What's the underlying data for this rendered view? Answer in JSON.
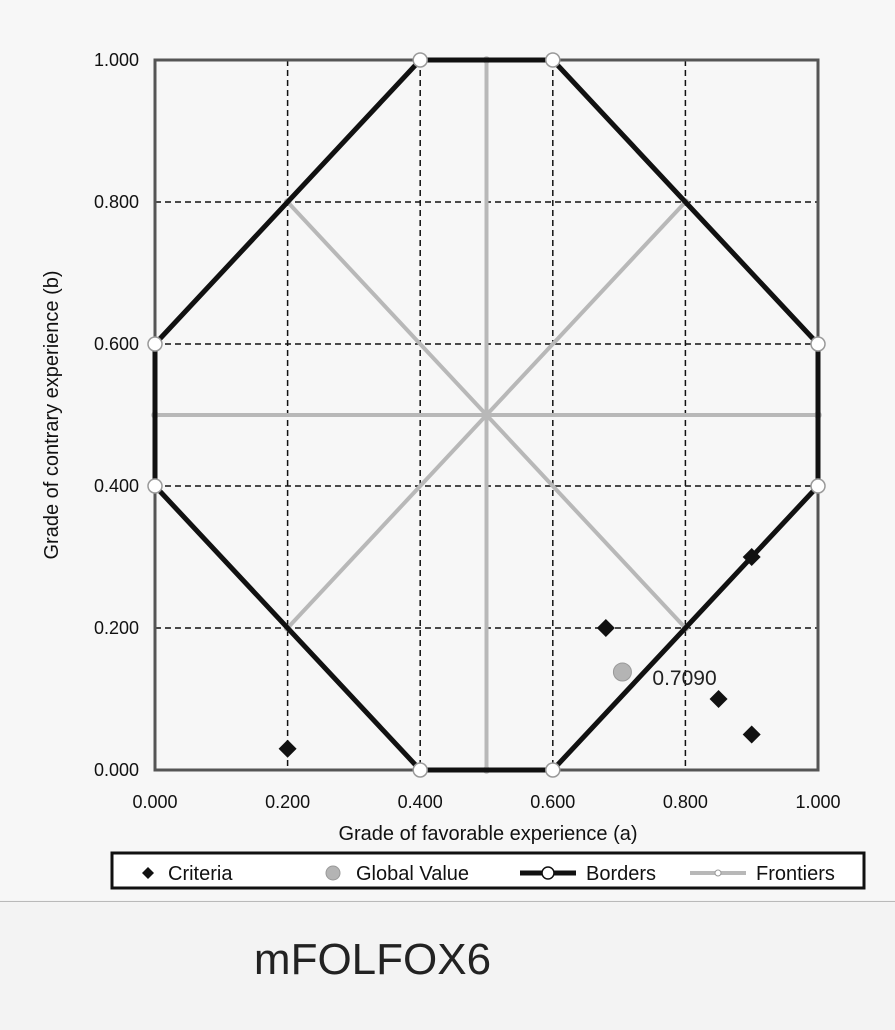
{
  "figure_caption": "mFOLFOX6",
  "chart_data": {
    "type": "scatter",
    "xlabel": "Grade of favorable experience (a)",
    "ylabel": "Grade of contrary experience (b)",
    "xlim": [
      0,
      1
    ],
    "ylim": [
      0,
      1
    ],
    "x_ticks": [
      "0.000",
      "0.200",
      "0.400",
      "0.600",
      "0.800",
      "1.000"
    ],
    "y_ticks": [
      "0.000",
      "0.200",
      "0.400",
      "0.600",
      "0.800",
      "1.000"
    ],
    "x_grid": [
      0.2,
      0.4,
      0.6,
      0.8
    ],
    "y_grid": [
      0.2,
      0.4,
      0.6,
      0.8
    ],
    "grid": true,
    "legend_position": "bottom",
    "legend": [
      "Criteria",
      "Global Value",
      "Borders",
      "Frontiers"
    ],
    "series": [
      {
        "name": "Criteria",
        "marker": "diamond",
        "color": "#111111",
        "points": [
          [
            0.2,
            0.03
          ],
          [
            0.68,
            0.2
          ],
          [
            0.85,
            0.1
          ],
          [
            0.9,
            0.05
          ],
          [
            0.9,
            0.3
          ]
        ]
      },
      {
        "name": "Global Value",
        "marker": "circle",
        "color": "#b4b4b4",
        "points": [
          [
            0.705,
            0.138
          ]
        ],
        "annotation": "0.7090"
      },
      {
        "name": "Borders",
        "marker": "open-circle",
        "color": "#111111",
        "points": [
          [
            0.4,
            0
          ],
          [
            0.6,
            0
          ],
          [
            1,
            0.4
          ],
          [
            1,
            0.6
          ],
          [
            0.6,
            1
          ],
          [
            0.4,
            1
          ],
          [
            0,
            0.6
          ],
          [
            0,
            0.4
          ],
          [
            0.4,
            0
          ]
        ]
      },
      {
        "name": "Frontiers",
        "marker": "small-open-circle",
        "color": "#b8b8b8",
        "segments": [
          [
            [
              0.5,
              0
            ],
            [
              0.5,
              1
            ]
          ],
          [
            [
              0,
              0.5
            ],
            [
              1,
              0.5
            ]
          ],
          [
            [
              0.2,
              0.2
            ],
            [
              0.8,
              0.8
            ]
          ],
          [
            [
              0.2,
              0.8
            ],
            [
              0.8,
              0.2
            ]
          ]
        ]
      }
    ]
  }
}
